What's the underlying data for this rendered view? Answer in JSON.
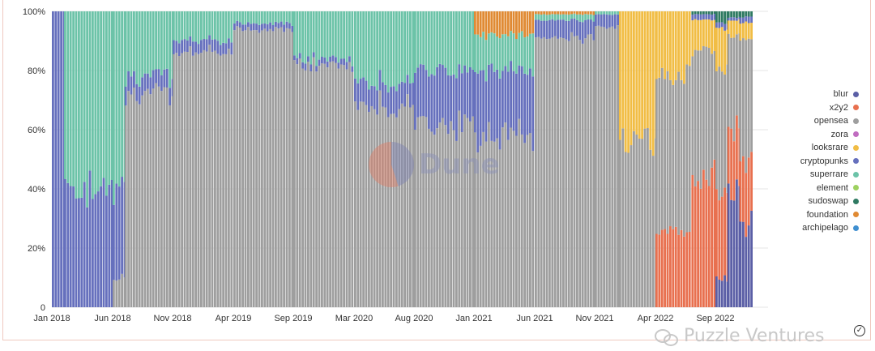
{
  "chart_data": {
    "type": "bar",
    "stacked": true,
    "normalized": true,
    "title": "",
    "xlabel": "",
    "ylabel": "",
    "ylim": [
      0,
      100
    ],
    "y_ticks": [
      "0",
      "20%",
      "40%",
      "60%",
      "80%",
      "100%"
    ],
    "x_ticks": [
      "Jan 2018",
      "Jun 2018",
      "Nov 2018",
      "Apr 2019",
      "Sep 2019",
      "Mar 2020",
      "Aug 2020",
      "Jan 2021",
      "Jun 2021",
      "Nov 2021",
      "Apr 2022",
      "Sep 2022"
    ],
    "x_period": "weekly",
    "legend_position": "right",
    "series": [
      {
        "name": "blur",
        "color": "#5b5fa6"
      },
      {
        "name": "x2y2",
        "color": "#e8704f"
      },
      {
        "name": "opensea",
        "color": "#9e9e9e"
      },
      {
        "name": "zora",
        "color": "#c06cc0"
      },
      {
        "name": "looksrare",
        "color": "#f1bd45"
      },
      {
        "name": "cryptopunks",
        "color": "#6670bd"
      },
      {
        "name": "superrare",
        "color": "#6cc3a8"
      },
      {
        "name": "element",
        "color": "#9ed160"
      },
      {
        "name": "sudoswap",
        "color": "#2f7a62"
      },
      {
        "name": "foundation",
        "color": "#e08a33"
      },
      {
        "name": "archipelago",
        "color": "#3f8fd0"
      }
    ],
    "segments": [
      {
        "start": "Jan 2018",
        "end": "Feb 2018",
        "blur": 0,
        "x2y2": 0,
        "opensea": 0,
        "looksrare": 0,
        "cryptopunks": 100,
        "superrare": 0,
        "sudoswap": 0,
        "foundation": 0
      },
      {
        "start": "Feb 2018",
        "end": "Jun 2018",
        "blur": 0,
        "x2y2": 0,
        "opensea": 0,
        "looksrare": 0,
        "cryptopunks": 40,
        "superrare": 60,
        "sudoswap": 0,
        "foundation": 0
      },
      {
        "start": "Jun 2018",
        "end": "Jul 2018",
        "blur": 0,
        "x2y2": 0,
        "opensea": 10,
        "looksrare": 0,
        "cryptopunks": 30,
        "superrare": 60,
        "sudoswap": 0,
        "foundation": 0
      },
      {
        "start": "Jul 2018",
        "end": "Nov 2018",
        "blur": 0,
        "x2y2": 0,
        "opensea": 72,
        "looksrare": 0,
        "cryptopunks": 6,
        "superrare": 22,
        "sudoswap": 0,
        "foundation": 0
      },
      {
        "start": "Nov 2018",
        "end": "Apr 2019",
        "blur": 0,
        "x2y2": 0,
        "opensea": 86,
        "looksrare": 0,
        "cryptopunks": 4,
        "superrare": 10,
        "sudoswap": 0,
        "foundation": 0
      },
      {
        "start": "Apr 2019",
        "end": "Sep 2019",
        "blur": 0,
        "x2y2": 0,
        "opensea": 94,
        "looksrare": 0,
        "cryptopunks": 2,
        "superrare": 4,
        "sudoswap": 0,
        "foundation": 0
      },
      {
        "start": "Sep 2019",
        "end": "Mar 2020",
        "blur": 0,
        "x2y2": 0,
        "opensea": 82,
        "looksrare": 0,
        "cryptopunks": 2,
        "superrare": 16,
        "sudoswap": 0,
        "foundation": 0
      },
      {
        "start": "Mar 2020",
        "end": "Aug 2020",
        "blur": 0,
        "x2y2": 0,
        "opensea": 68,
        "looksrare": 0,
        "cryptopunks": 8,
        "superrare": 24,
        "sudoswap": 0,
        "foundation": 0
      },
      {
        "start": "Aug 2020",
        "end": "Jan 2021",
        "blur": 0,
        "x2y2": 0,
        "opensea": 62,
        "looksrare": 0,
        "cryptopunks": 18,
        "superrare": 20,
        "sudoswap": 0,
        "foundation": 0
      },
      {
        "start": "Jan 2021",
        "end": "Jun 2021",
        "blur": 0,
        "x2y2": 0,
        "opensea": 58,
        "looksrare": 0,
        "cryptopunks": 22,
        "superrare": 12,
        "sudoswap": 0,
        "foundation": 8
      },
      {
        "start": "Jun 2021",
        "end": "Nov 2021",
        "blur": 0,
        "x2y2": 0,
        "opensea": 91,
        "looksrare": 0,
        "cryptopunks": 6,
        "superrare": 2,
        "sudoswap": 0,
        "foundation": 1
      },
      {
        "start": "Nov 2021",
        "end": "Jan 2022",
        "blur": 0,
        "x2y2": 0,
        "opensea": 95,
        "looksrare": 0,
        "cryptopunks": 4,
        "superrare": 1,
        "sudoswap": 0,
        "foundation": 0
      },
      {
        "start": "Jan 2022",
        "end": "Apr 2022",
        "blur": 0,
        "x2y2": 0,
        "opensea": 55,
        "looksrare": 45,
        "cryptopunks": 0,
        "superrare": 0,
        "sudoswap": 0,
        "foundation": 0
      },
      {
        "start": "Apr 2022",
        "end": "Jul 2022",
        "blur": 0,
        "x2y2": 25,
        "opensea": 53,
        "looksrare": 22,
        "cryptopunks": 0,
        "superrare": 0,
        "sudoswap": 0,
        "foundation": 0
      },
      {
        "start": "Jul 2022",
        "end": "Sep 2022",
        "blur": 0,
        "x2y2": 45,
        "opensea": 42,
        "looksrare": 10,
        "cryptopunks": 2,
        "superrare": 0,
        "sudoswap": 1,
        "foundation": 0
      },
      {
        "start": "Sep 2022",
        "end": "Oct 2022",
        "blur": 10,
        "x2y2": 30,
        "opensea": 40,
        "looksrare": 14,
        "cryptopunks": 2,
        "superrare": 0,
        "sudoswap": 4,
        "foundation": 0
      },
      {
        "start": "Oct 2022",
        "end": "Nov 2022",
        "blur": 40,
        "x2y2": 22,
        "opensea": 30,
        "looksrare": 5,
        "cryptopunks": 1,
        "superrare": 0,
        "sudoswap": 2,
        "foundation": 0
      },
      {
        "start": "Nov 2022",
        "end": "Dec 2022",
        "blur": 28,
        "x2y2": 22,
        "opensea": 40,
        "looksrare": 6,
        "cryptopunks": 2,
        "superrare": 0,
        "sudoswap": 2,
        "foundation": 0
      }
    ]
  },
  "watermark": {
    "text": "Dune"
  },
  "footer": {
    "brand": "Puzzle Ventures"
  }
}
